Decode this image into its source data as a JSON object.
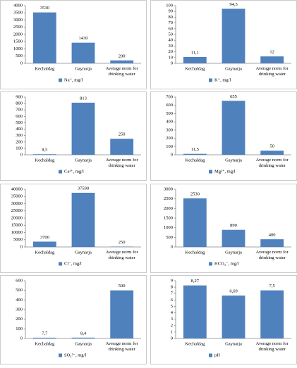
{
  "chart_data": [
    {
      "type": "bar",
      "categories": [
        "Kechaldag",
        "Gaynarja",
        "Average norm for drinking water"
      ],
      "series": [
        {
          "name": "Na⁺, mg/l",
          "color": "#4f81bd",
          "values": [
            3530,
            1430,
            200
          ]
        }
      ],
      "ylim": [
        0,
        4000
      ],
      "yticks": [
        0,
        500,
        1000,
        1500,
        2000,
        2500,
        3000,
        3500,
        4000
      ]
    },
    {
      "type": "bar",
      "categories": [
        "Kechaldag",
        "Gaynarja",
        "Average norm for drinking water"
      ],
      "series": [
        {
          "name": "K⁺, mg/l",
          "color": "#4f81bd",
          "values": [
            11.1,
            94.5,
            12
          ],
          "value_labels": [
            "11,1",
            "94,5",
            "12"
          ]
        }
      ],
      "ylim": [
        0,
        100
      ],
      "yticks": [
        0,
        10,
        20,
        30,
        40,
        50,
        60,
        70,
        80,
        90,
        100
      ]
    },
    {
      "type": "bar",
      "categories": [
        "Kechaldag",
        "Gaynarja",
        "Average norm for drinking water"
      ],
      "series": [
        {
          "name": "Ca²⁺, mg/l",
          "color": "#4f81bd",
          "values": [
            8.5,
            813,
            250
          ],
          "value_labels": [
            "8,5",
            "813",
            "250"
          ]
        }
      ],
      "ylim": [
        0,
        900
      ],
      "yticks": [
        0,
        100,
        200,
        300,
        400,
        500,
        600,
        700,
        800,
        900
      ]
    },
    {
      "type": "bar",
      "categories": [
        "Kechaldag",
        "Gaynarja",
        "Average norm for drinking water"
      ],
      "series": [
        {
          "name": "Mg²⁺, mg/l",
          "color": "#4f81bd",
          "values": [
            11.5,
            655,
            50
          ],
          "value_labels": [
            "11,5",
            "655",
            "50"
          ]
        }
      ],
      "ylim": [
        0,
        700
      ],
      "yticks": [
        0,
        100,
        200,
        300,
        400,
        500,
        600,
        700
      ]
    },
    {
      "type": "bar",
      "categories": [
        "Kechaldag",
        "Gaynarja",
        "Average norm for drinking water"
      ],
      "series": [
        {
          "name": "Cl⁻, mg/l",
          "color": "#4f81bd",
          "values": [
            3700,
            37590,
            250
          ]
        }
      ],
      "ylim": [
        0,
        40000
      ],
      "yticks": [
        0,
        5000,
        10000,
        15000,
        20000,
        25000,
        30000,
        35000,
        40000
      ]
    },
    {
      "type": "bar",
      "categories": [
        "Kechaldag",
        "Gaynarja",
        "Average norm for drinking water"
      ],
      "series": [
        {
          "name": "HCO₃⁻, mg/l",
          "color": "#4f81bd",
          "values": [
            2530,
            890,
            400
          ]
        }
      ],
      "ylim": [
        0,
        3000
      ],
      "yticks": [
        0,
        500,
        1000,
        1500,
        2000,
        2500,
        3000
      ]
    },
    {
      "type": "bar",
      "categories": [
        "Kechaldag",
        "Gaynarja",
        "Average norm for drinking water"
      ],
      "series": [
        {
          "name": "SO₄²⁻, mg/l",
          "color": "#4f81bd",
          "values": [
            7.7,
            8.4,
            500
          ],
          "value_labels": [
            "7,7",
            "8,4",
            "500"
          ]
        }
      ],
      "ylim": [
        0,
        600
      ],
      "yticks": [
        0,
        100,
        200,
        300,
        400,
        500,
        600
      ]
    },
    {
      "type": "bar",
      "categories": [
        "Kechaldag",
        "Gaynarja",
        "Average norm for drinking water"
      ],
      "series": [
        {
          "name": "pH",
          "color": "#4f81bd",
          "values": [
            8.27,
            6.69,
            7.5
          ],
          "value_labels": [
            "8,27",
            "6,69",
            "7,5"
          ]
        }
      ],
      "ylim": [
        0,
        9
      ],
      "yticks": [
        0,
        1,
        2,
        3,
        4,
        5,
        6,
        7,
        8,
        9
      ]
    }
  ]
}
